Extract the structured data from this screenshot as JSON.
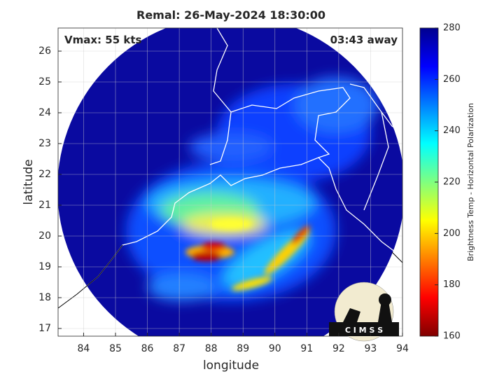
{
  "title": "Remal: 26-May-2024 18:30:00",
  "vmax": "Vmax: 55 kts",
  "away": "03:43 away",
  "x_label": "longitude",
  "y_label": "latitude",
  "xlim": [
    83.2,
    94
  ],
  "ylim": [
    16.75,
    26.75
  ],
  "xticks": [
    84,
    85,
    86,
    87,
    88,
    89,
    90,
    91,
    92,
    93,
    94
  ],
  "yticks": [
    17,
    18,
    19,
    20,
    21,
    22,
    23,
    24,
    25,
    26
  ],
  "grid": true,
  "colorbar": {
    "label": "Brightness Temp - Horizontal Polarization",
    "clim": [
      160,
      280
    ],
    "ticks": [
      160,
      180,
      200,
      220,
      240,
      260,
      280
    ]
  },
  "logo": "C I M S S"
}
